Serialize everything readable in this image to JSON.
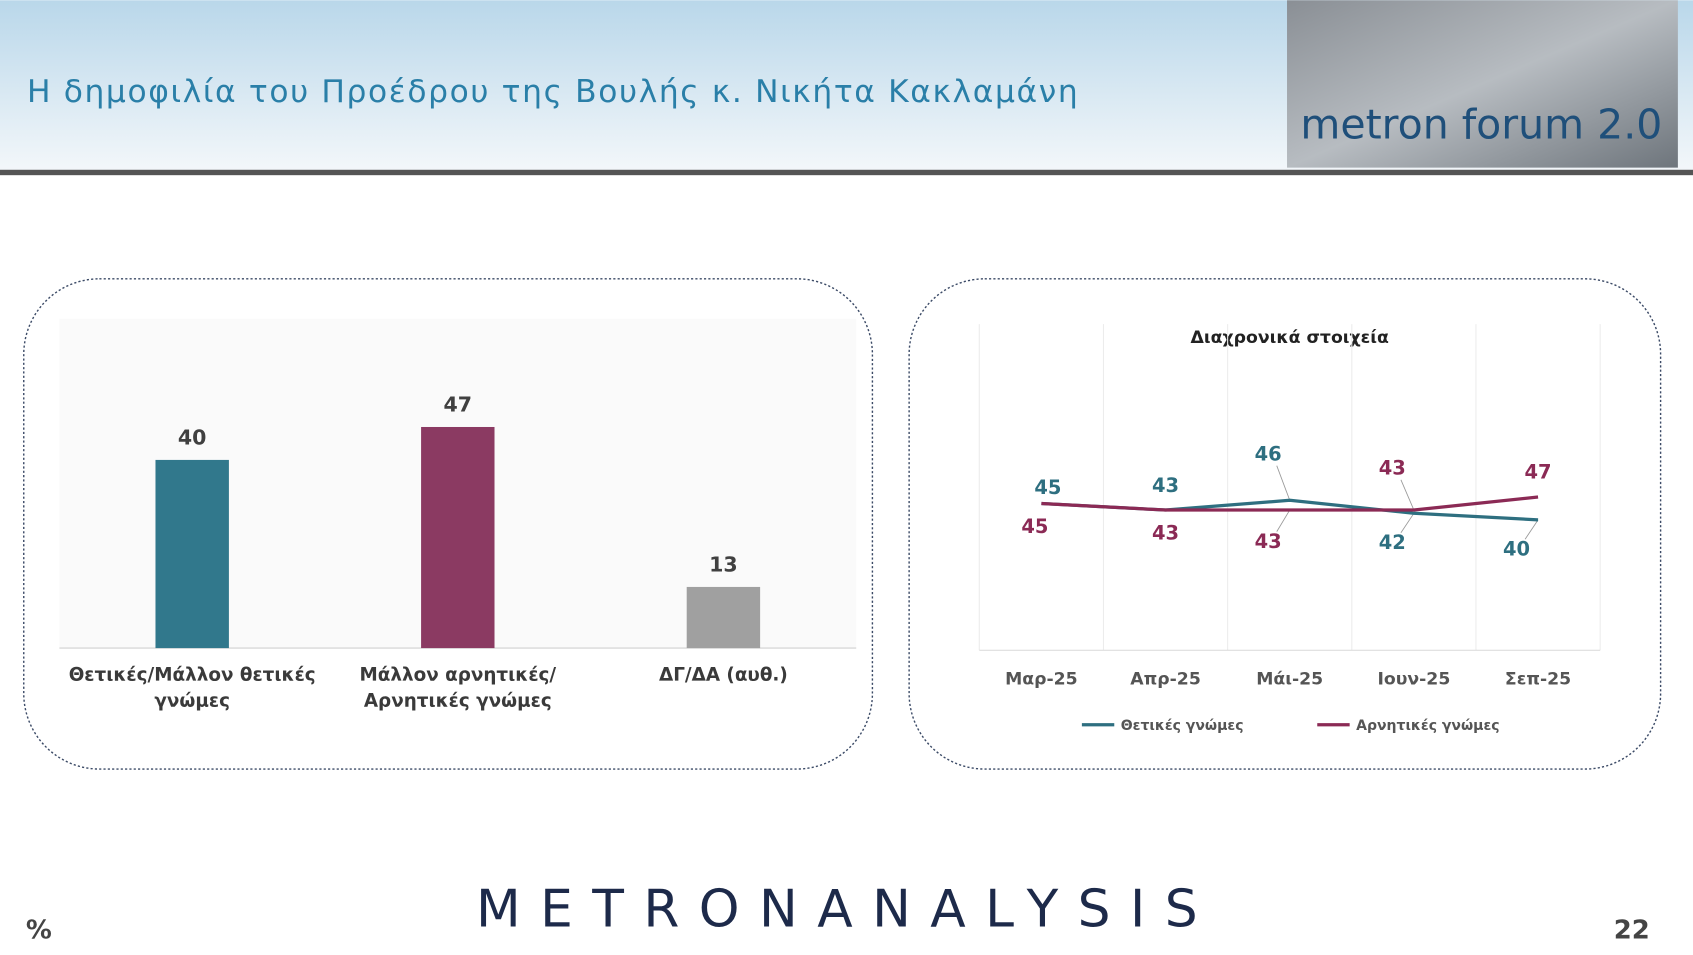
{
  "title": "Η δημοφιλία του Προέδρου της Βουλής κ. Νικήτα Κακλαμάνη",
  "logo_text": "metron forum 2.0",
  "brand": "METRONANALYSIS",
  "unit": "%",
  "page_number": 22,
  "chart_data": [
    {
      "type": "bar",
      "categories": [
        "Θετικές/Μάλλον θετικές γνώμες",
        "Μάλλον αρνητικές/Αρνητικές γνώμες",
        "ΔΓ/ΔΑ (αυθ.)"
      ],
      "values": [
        40,
        47,
        13
      ],
      "colors": [
        "#31788c",
        "#8b3a62",
        "#a0a0a0"
      ],
      "ylim": [
        0,
        70
      ]
    },
    {
      "type": "line",
      "title": "Διαχρονικά στοιχεία",
      "categories": [
        "Μαρ-25",
        "Απρ-25",
        "Μάι-25",
        "Ιουν-25",
        "Σεπ-25"
      ],
      "series": [
        {
          "name": "Θετικές γνώμες",
          "color": "#2e6f80",
          "values": [
            45,
            43,
            46,
            42,
            40
          ]
        },
        {
          "name": "Αρνητικές γνώμες",
          "color": "#8b2a55",
          "values": [
            45,
            43,
            43,
            43,
            47
          ]
        }
      ],
      "ylim": [
        0,
        100
      ],
      "grid": true,
      "legend": "bottom"
    }
  ]
}
